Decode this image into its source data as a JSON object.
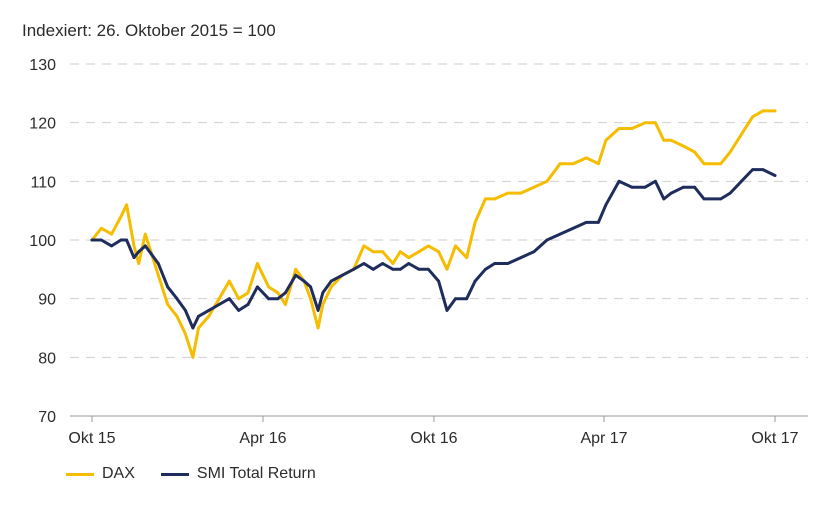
{
  "chart_data": {
    "type": "line",
    "subtitle": "Indexiert: 26. Oktober 2015 = 100",
    "ylim": [
      70,
      130
    ],
    "yticks": [
      70,
      80,
      90,
      100,
      110,
      120,
      130
    ],
    "xlim": [
      "2015-10-26",
      "2017-10-26"
    ],
    "xticks": [
      {
        "date": "2015-10-26",
        "label": "Okt 15"
      },
      {
        "date": "2016-04-26",
        "label": "Apr 16"
      },
      {
        "date": "2016-10-26",
        "label": "Okt 16"
      },
      {
        "date": "2017-04-26",
        "label": "Apr 17"
      },
      {
        "date": "2017-10-26",
        "label": "Okt 17"
      }
    ],
    "grid": true,
    "legend_position": "bottom-left",
    "series": [
      {
        "name": "DAX",
        "color": "#F5BC00",
        "points": [
          [
            "2015-10-26",
            100
          ],
          [
            "2015-11-05",
            102
          ],
          [
            "2015-11-16",
            101
          ],
          [
            "2015-11-26",
            104
          ],
          [
            "2015-12-02",
            106
          ],
          [
            "2015-12-10",
            99
          ],
          [
            "2015-12-15",
            96
          ],
          [
            "2015-12-22",
            101
          ],
          [
            "2016-01-05",
            94
          ],
          [
            "2016-01-15",
            89
          ],
          [
            "2016-01-25",
            87
          ],
          [
            "2016-02-03",
            84
          ],
          [
            "2016-02-11",
            80
          ],
          [
            "2016-02-17",
            85
          ],
          [
            "2016-02-28",
            87
          ],
          [
            "2016-03-10",
            90
          ],
          [
            "2016-03-21",
            93
          ],
          [
            "2016-03-31",
            90
          ],
          [
            "2016-04-10",
            91
          ],
          [
            "2016-04-20",
            96
          ],
          [
            "2016-05-02",
            92
          ],
          [
            "2016-05-12",
            91
          ],
          [
            "2016-05-20",
            89
          ],
          [
            "2016-05-31",
            95
          ],
          [
            "2016-06-09",
            93
          ],
          [
            "2016-06-16",
            90
          ],
          [
            "2016-06-24",
            85
          ],
          [
            "2016-06-29",
            89
          ],
          [
            "2016-07-08",
            92
          ],
          [
            "2016-07-20",
            94
          ],
          [
            "2016-08-01",
            95
          ],
          [
            "2016-08-12",
            99
          ],
          [
            "2016-08-22",
            98
          ],
          [
            "2016-09-01",
            98
          ],
          [
            "2016-09-12",
            96
          ],
          [
            "2016-09-20",
            98
          ],
          [
            "2016-09-29",
            97
          ],
          [
            "2016-10-10",
            98
          ],
          [
            "2016-10-20",
            99
          ],
          [
            "2016-10-31",
            98
          ],
          [
            "2016-11-09",
            95
          ],
          [
            "2016-11-18",
            99
          ],
          [
            "2016-11-30",
            97
          ],
          [
            "2016-12-09",
            103
          ],
          [
            "2016-12-20",
            107
          ],
          [
            "2016-12-30",
            107
          ],
          [
            "2017-01-13",
            108
          ],
          [
            "2017-01-27",
            108
          ],
          [
            "2017-02-10",
            109
          ],
          [
            "2017-02-24",
            110
          ],
          [
            "2017-03-10",
            113
          ],
          [
            "2017-03-24",
            113
          ],
          [
            "2017-04-07",
            114
          ],
          [
            "2017-04-20",
            113
          ],
          [
            "2017-04-28",
            117
          ],
          [
            "2017-05-12",
            119
          ],
          [
            "2017-05-26",
            119
          ],
          [
            "2017-06-09",
            120
          ],
          [
            "2017-06-20",
            120
          ],
          [
            "2017-06-29",
            117
          ],
          [
            "2017-07-07",
            117
          ],
          [
            "2017-07-20",
            116
          ],
          [
            "2017-08-01",
            115
          ],
          [
            "2017-08-11",
            113
          ],
          [
            "2017-08-29",
            113
          ],
          [
            "2017-09-08",
            115
          ],
          [
            "2017-09-20",
            118
          ],
          [
            "2017-10-02",
            121
          ],
          [
            "2017-10-13",
            122
          ],
          [
            "2017-10-26",
            122
          ]
        ]
      },
      {
        "name": "SMI Total Return",
        "color": "#1F2D5C",
        "points": [
          [
            "2015-10-26",
            100
          ],
          [
            "2015-11-05",
            100
          ],
          [
            "2015-11-16",
            99
          ],
          [
            "2015-11-26",
            100
          ],
          [
            "2015-12-02",
            100
          ],
          [
            "2015-12-10",
            97
          ],
          [
            "2015-12-15",
            98
          ],
          [
            "2015-12-22",
            99
          ],
          [
            "2016-01-05",
            96
          ],
          [
            "2016-01-15",
            92
          ],
          [
            "2016-01-25",
            90
          ],
          [
            "2016-02-03",
            88
          ],
          [
            "2016-02-11",
            85
          ],
          [
            "2016-02-17",
            87
          ],
          [
            "2016-02-28",
            88
          ],
          [
            "2016-03-10",
            89
          ],
          [
            "2016-03-21",
            90
          ],
          [
            "2016-03-31",
            88
          ],
          [
            "2016-04-10",
            89
          ],
          [
            "2016-04-20",
            92
          ],
          [
            "2016-05-02",
            90
          ],
          [
            "2016-05-12",
            90
          ],
          [
            "2016-05-20",
            91
          ],
          [
            "2016-05-31",
            94
          ],
          [
            "2016-06-09",
            93
          ],
          [
            "2016-06-16",
            92
          ],
          [
            "2016-06-24",
            88
          ],
          [
            "2016-06-29",
            91
          ],
          [
            "2016-07-08",
            93
          ],
          [
            "2016-07-20",
            94
          ],
          [
            "2016-08-01",
            95
          ],
          [
            "2016-08-12",
            96
          ],
          [
            "2016-08-22",
            95
          ],
          [
            "2016-09-01",
            96
          ],
          [
            "2016-09-12",
            95
          ],
          [
            "2016-09-20",
            95
          ],
          [
            "2016-09-29",
            96
          ],
          [
            "2016-10-10",
            95
          ],
          [
            "2016-10-20",
            95
          ],
          [
            "2016-10-31",
            93
          ],
          [
            "2016-11-09",
            88
          ],
          [
            "2016-11-18",
            90
          ],
          [
            "2016-11-30",
            90
          ],
          [
            "2016-12-09",
            93
          ],
          [
            "2016-12-20",
            95
          ],
          [
            "2016-12-30",
            96
          ],
          [
            "2017-01-13",
            96
          ],
          [
            "2017-01-27",
            97
          ],
          [
            "2017-02-10",
            98
          ],
          [
            "2017-02-24",
            100
          ],
          [
            "2017-03-10",
            101
          ],
          [
            "2017-03-24",
            102
          ],
          [
            "2017-04-07",
            103
          ],
          [
            "2017-04-20",
            103
          ],
          [
            "2017-04-28",
            106
          ],
          [
            "2017-05-12",
            110
          ],
          [
            "2017-05-26",
            109
          ],
          [
            "2017-06-09",
            109
          ],
          [
            "2017-06-20",
            110
          ],
          [
            "2017-06-29",
            107
          ],
          [
            "2017-07-07",
            108
          ],
          [
            "2017-07-20",
            109
          ],
          [
            "2017-08-01",
            109
          ],
          [
            "2017-08-11",
            107
          ],
          [
            "2017-08-29",
            107
          ],
          [
            "2017-09-08",
            108
          ],
          [
            "2017-09-20",
            110
          ],
          [
            "2017-10-02",
            112
          ],
          [
            "2017-10-13",
            112
          ],
          [
            "2017-10-26",
            111
          ]
        ]
      }
    ]
  }
}
